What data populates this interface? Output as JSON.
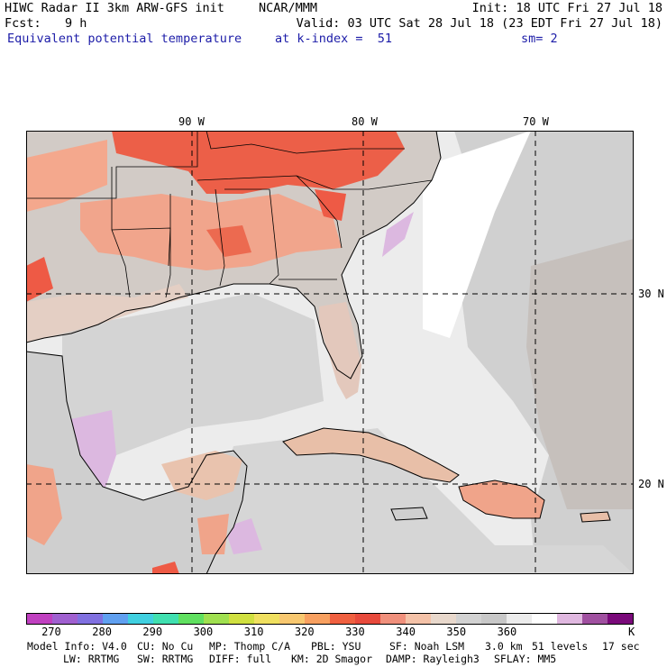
{
  "header": {
    "line1_left": "HIWC Radar II 3km ARW-GFS init",
    "line1_mid": "NCAR/MMM",
    "line1_right": "Init: 18 UTC Fri 27 Jul 18",
    "fcst_label": "Fcst:",
    "fcst_value": "9 h",
    "valid": "Valid: 03 UTC Sat 28 Jul 18 (23 EDT Fri 27 Jul 18)",
    "field": "Equivalent potential temperature",
    "level": "at k-index =  51",
    "smooth": "sm= 2"
  },
  "map": {
    "lon_labels": [
      "90 W",
      "80 W",
      "70 W"
    ],
    "lat_labels": [
      "30 N",
      "20 N"
    ]
  },
  "colorbar": {
    "colors": [
      "#c040c0",
      "#a060d0",
      "#8070e0",
      "#60a0f0",
      "#40d0e0",
      "#40e0b0",
      "#60e060",
      "#a0e050",
      "#d0e040",
      "#f0e060",
      "#f8c870",
      "#f8a060",
      "#f06040",
      "#e84a3c",
      "#f0907c",
      "#f4c2a8",
      "#e8d8cc",
      "#d2d2d2",
      "#c8c8c8",
      "#ececec",
      "#ffffff",
      "#e0b8e0",
      "#a050a0",
      "#7a0a7a"
    ],
    "ticks": [
      "270",
      "280",
      "290",
      "300",
      "310",
      "320",
      "330",
      "340",
      "350",
      "360",
      "K"
    ]
  },
  "footer": {
    "line1": [
      "Model Info: V4.0",
      "CU: No Cu",
      "MP: Thomp C/A",
      "PBL: YSU",
      "SF: Noah LSM",
      "3.0 km",
      "51 levels",
      "17 sec"
    ],
    "line2": [
      "LW: RRTMG",
      "SW: RRTMG",
      "DIFF: full",
      "KM: 2D Smagor",
      "DAMP: Rayleigh3",
      "SFLAY: MM5"
    ]
  }
}
